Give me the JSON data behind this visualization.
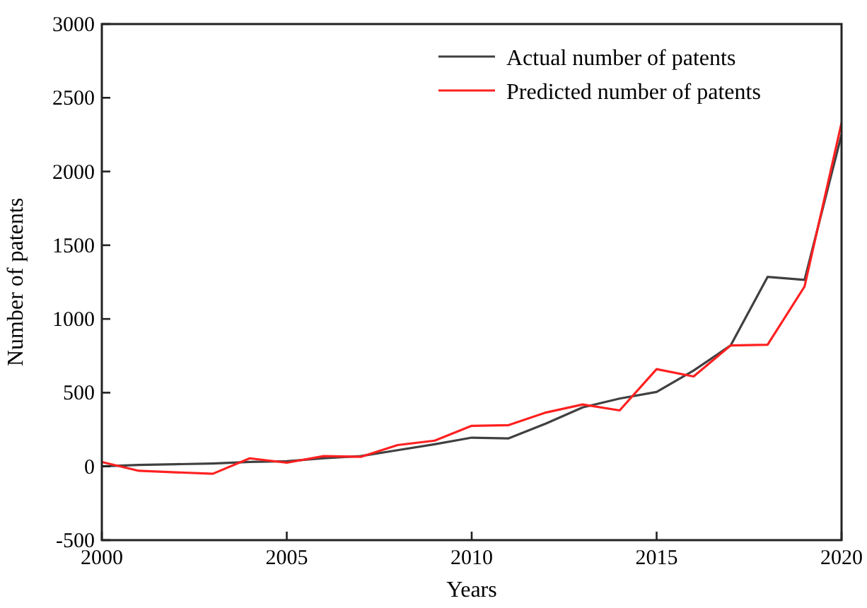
{
  "chart_data": {
    "type": "line",
    "xlabel": "Years",
    "ylabel": "Number of patents",
    "x": [
      2000,
      2001,
      2002,
      2003,
      2004,
      2005,
      2006,
      2007,
      2008,
      2009,
      2010,
      2011,
      2012,
      2013,
      2014,
      2015,
      2016,
      2017,
      2018,
      2019,
      2020
    ],
    "series": [
      {
        "name": "Actual number of patents",
        "color": "#404040",
        "values": [
          0,
          10,
          15,
          20,
          30,
          35,
          55,
          70,
          110,
          150,
          195,
          190,
          290,
          400,
          460,
          505,
          650,
          820,
          1285,
          1265,
          2250
        ]
      },
      {
        "name": "Predicted number of patents",
        "color": "#ff2020",
        "values": [
          30,
          -30,
          -40,
          -50,
          55,
          25,
          70,
          65,
          145,
          175,
          275,
          280,
          365,
          420,
          380,
          660,
          610,
          820,
          825,
          1220,
          2330
        ]
      }
    ],
    "xlim": [
      2000,
      2020
    ],
    "xticks": [
      2000,
      2005,
      2010,
      2015,
      2020
    ],
    "ylim": [
      -500,
      3000
    ],
    "yticks": [
      -500,
      0,
      500,
      1000,
      1500,
      2000,
      2500,
      3000
    ],
    "legend": "top right",
    "grid": false,
    "marker": "none",
    "line_style": "solid"
  }
}
